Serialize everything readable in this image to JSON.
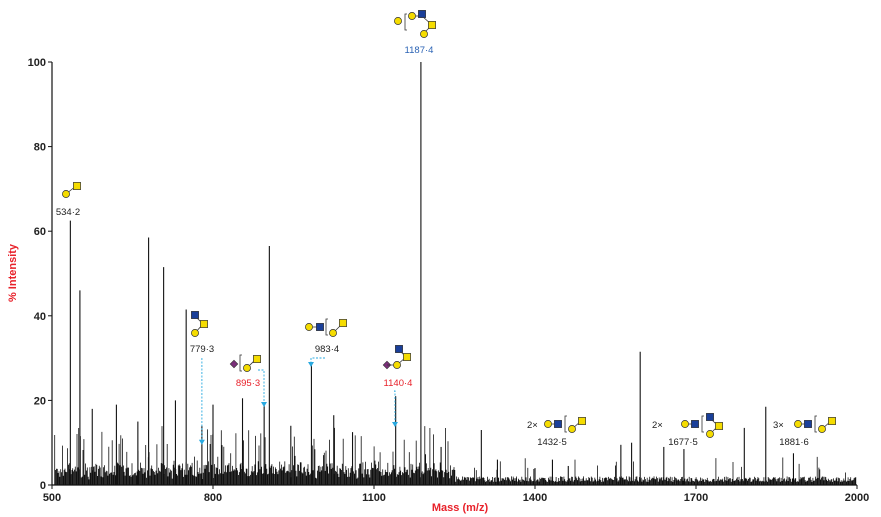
{
  "chart_data": {
    "type": "line",
    "title": "",
    "xlabel": "Mass (m/z)",
    "ylabel": "% Intensity",
    "xlim": [
      500,
      2000
    ],
    "ylim": [
      0,
      100
    ],
    "x_ticks": [
      "500",
      "800",
      "1100",
      "1400",
      "1700",
      "2000"
    ],
    "y_ticks": [
      "0",
      "20",
      "40",
      "60",
      "80",
      "100"
    ],
    "grid": false,
    "colors": {
      "spectrum": "#111111",
      "axis_title": "#e8212a",
      "label_default": "#222222",
      "label_red": "#e8212a",
      "label_blue": "#2b63b5",
      "arrow": "#29a9e0",
      "galactose": "#f5dc00",
      "galnac": "#f5dc00",
      "glcnac": "#1a3f99",
      "sialic": "#7b2f7a"
    },
    "major_peaks": [
      {
        "mz": 534.2,
        "intensity": 62.5
      },
      {
        "mz": 552,
        "intensity": 46
      },
      {
        "mz": 575,
        "intensity": 18
      },
      {
        "mz": 620,
        "intensity": 19
      },
      {
        "mz": 660,
        "intensity": 15
      },
      {
        "mz": 680,
        "intensity": 58.5
      },
      {
        "mz": 708,
        "intensity": 51.5
      },
      {
        "mz": 730,
        "intensity": 20
      },
      {
        "mz": 750,
        "intensity": 41.5
      },
      {
        "mz": 779.3,
        "intensity": 14
      },
      {
        "mz": 800,
        "intensity": 19
      },
      {
        "mz": 855,
        "intensity": 20.5
      },
      {
        "mz": 895.3,
        "intensity": 19.5
      },
      {
        "mz": 905,
        "intensity": 56.5
      },
      {
        "mz": 945,
        "intensity": 14
      },
      {
        "mz": 983.4,
        "intensity": 29
      },
      {
        "mz": 1025,
        "intensity": 16.5
      },
      {
        "mz": 1060,
        "intensity": 12.5
      },
      {
        "mz": 1140.4,
        "intensity": 21
      },
      {
        "mz": 1187.4,
        "intensity": 100
      },
      {
        "mz": 1225,
        "intensity": 9
      },
      {
        "mz": 1300,
        "intensity": 13
      },
      {
        "mz": 1330,
        "intensity": 6
      },
      {
        "mz": 1400,
        "intensity": 4
      },
      {
        "mz": 1432.5,
        "intensity": 6
      },
      {
        "mz": 1462,
        "intensity": 4.5
      },
      {
        "mz": 1560,
        "intensity": 9.5
      },
      {
        "mz": 1580,
        "intensity": 10
      },
      {
        "mz": 1596,
        "intensity": 31.5
      },
      {
        "mz": 1640,
        "intensity": 9
      },
      {
        "mz": 1677.5,
        "intensity": 8.5
      },
      {
        "mz": 1790,
        "intensity": 13.5
      },
      {
        "mz": 1830,
        "intensity": 18.5
      },
      {
        "mz": 1881.6,
        "intensity": 7.5
      }
    ],
    "annotations": [
      {
        "label": "534·2",
        "mz": 534.2,
        "intensity": 62.5,
        "color": "label_default",
        "glycan": "gal-galnac"
      },
      {
        "label": "779·3",
        "mz": 779.3,
        "intensity": 14,
        "color": "label_default",
        "glycan": "glcnac-gal-galnac",
        "arrow": true
      },
      {
        "label": "895·3",
        "mz": 895.3,
        "intensity": 19.5,
        "color": "label_red",
        "glycan": "sia-gal-galnac",
        "arrow": true
      },
      {
        "label": "983·4",
        "mz": 983.4,
        "intensity": 29,
        "color": "label_default",
        "glycan": "gal-glcnac-gal-galnac",
        "arrow": true
      },
      {
        "label": "1140·4",
        "mz": 1140.4,
        "intensity": 21,
        "color": "label_red",
        "glycan": "sia-gal-glcnac-galnac",
        "arrow": true
      },
      {
        "label": "1187·4",
        "mz": 1187.4,
        "intensity": 100,
        "color": "label_blue",
        "glycan": "gal-glcnac-galnac-gal"
      },
      {
        "label": "1432·5",
        "mz": 1432.5,
        "intensity": 6,
        "color": "label_default",
        "glycan": "2x-lacnac",
        "multiplier": "2×"
      },
      {
        "label": "1677·5",
        "mz": 1677.5,
        "intensity": 8.5,
        "color": "label_default",
        "glycan": "2x-lacnac-branched",
        "multiplier": "2×"
      },
      {
        "label": "1881·6",
        "mz": 1881.6,
        "intensity": 7.5,
        "color": "label_default",
        "glycan": "3x-lacnac",
        "multiplier": "3×"
      }
    ]
  }
}
